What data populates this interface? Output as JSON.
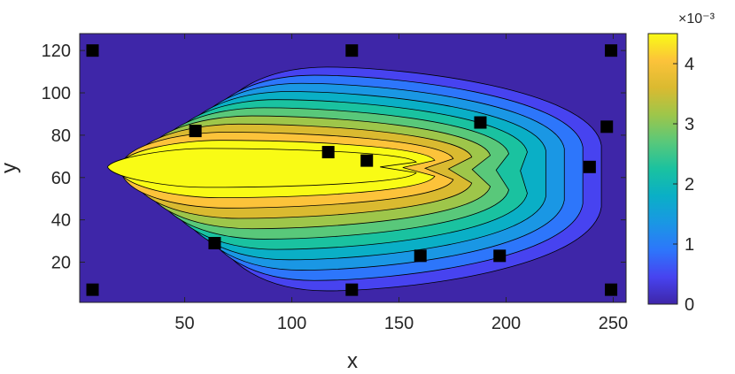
{
  "chart_data": {
    "type": "heatmap",
    "subtype": "filled-contour",
    "title": "",
    "xlabel": "x",
    "ylabel": "y",
    "xlim": [
      1,
      256
    ],
    "ylim": [
      1,
      128
    ],
    "xticks": [
      50,
      100,
      150,
      200,
      250
    ],
    "yticks": [
      20,
      40,
      60,
      80,
      100,
      120
    ],
    "colormap": "parula",
    "colorbar": {
      "clim": [
        0,
        0.0045
      ],
      "ticks": [
        0,
        1,
        2,
        3,
        4
      ],
      "exponent_label": "×10⁻³"
    },
    "field_peak": {
      "x": 110,
      "y": 65,
      "value": 0.0045
    },
    "sensor_markers": [
      {
        "x": 7,
        "y": 120
      },
      {
        "x": 128,
        "y": 120
      },
      {
        "x": 249,
        "y": 120
      },
      {
        "x": 55,
        "y": 82
      },
      {
        "x": 188,
        "y": 86
      },
      {
        "x": 247,
        "y": 84
      },
      {
        "x": 117,
        "y": 72
      },
      {
        "x": 135,
        "y": 68
      },
      {
        "x": 239,
        "y": 65
      },
      {
        "x": 64,
        "y": 29
      },
      {
        "x": 160,
        "y": 23
      },
      {
        "x": 197,
        "y": 23
      },
      {
        "x": 7,
        "y": 7
      },
      {
        "x": 128,
        "y": 7
      },
      {
        "x": 249,
        "y": 7
      }
    ],
    "colors": {
      "parula": [
        "#3E26A8",
        "#4743F0",
        "#2D76FB",
        "#1A97E4",
        "#0AAFC6",
        "#1AC2A0",
        "#59C87A",
        "#9EC64A",
        "#DABA30",
        "#FCC33A",
        "#F9FB15"
      ],
      "contour_line": "#000000",
      "marker": "#000000",
      "axis": "#262626"
    }
  }
}
